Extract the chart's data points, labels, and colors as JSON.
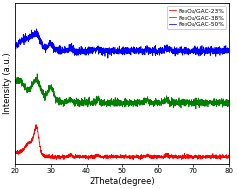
{
  "title": "",
  "xlabel": "2Theta(degree)",
  "ylabel": "Intensity (a.u.)",
  "xlim": [
    20,
    80
  ],
  "xticks": [
    20,
    30,
    40,
    50,
    60,
    70,
    80
  ],
  "legend_labels": [
    "Fe₃O₄/GAC-23%",
    "Fe₃O₄/GAC-38%",
    "Fe₃O₄/GAC-50%"
  ],
  "line_colors": [
    "red",
    "green",
    "blue"
  ],
  "background_color": "#ffffff",
  "linewidth": 0.55,
  "figsize": [
    2.37,
    1.89
  ],
  "dpi": 100
}
